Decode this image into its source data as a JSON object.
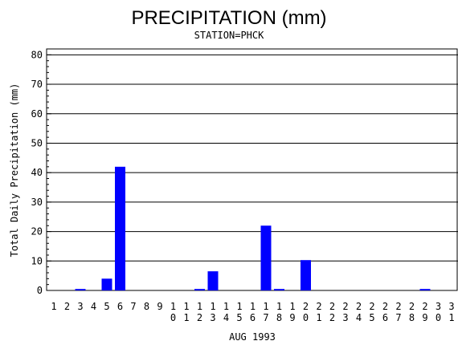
{
  "chart_data": {
    "type": "bar",
    "title": "PRECIPITATION (mm)",
    "subtitle": "STATION=PHCK",
    "xlabel": "AUG 1993",
    "ylabel": "Total Daily Precipitation (mm)",
    "ylim": [
      0,
      82
    ],
    "yticks": [
      0,
      10,
      20,
      30,
      40,
      50,
      60,
      70,
      80
    ],
    "grid": true,
    "bar_color": "#0000ff",
    "categories": [
      "1",
      "2",
      "3",
      "4",
      "5",
      "6",
      "7",
      "8",
      "9",
      "10",
      "11",
      "12",
      "13",
      "14",
      "15",
      "16",
      "17",
      "18",
      "19",
      "20",
      "21",
      "22",
      "23",
      "24",
      "25",
      "26",
      "27",
      "28",
      "29",
      "30",
      "31"
    ],
    "values": [
      0,
      0,
      0.5,
      0,
      4,
      42,
      0,
      0,
      0,
      0,
      0,
      0.5,
      6.5,
      0,
      0,
      0,
      22,
      0.5,
      0,
      10.3,
      0,
      0,
      0,
      0,
      0,
      0,
      0,
      0,
      0.5,
      0,
      0
    ]
  }
}
